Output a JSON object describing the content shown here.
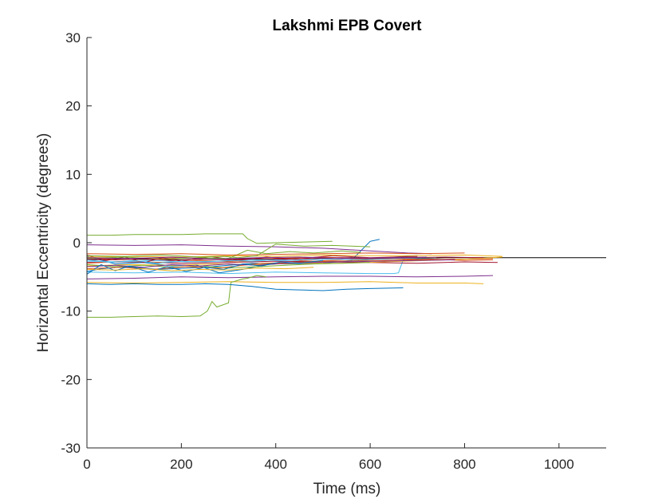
{
  "chart_data": {
    "type": "line",
    "title": "Lakshmi EPB Covert",
    "xlabel": "Time (ms)",
    "ylabel": "Horizontal Eccentricity (degrees)",
    "xlim": [
      0,
      1100
    ],
    "ylim": [
      -30,
      30
    ],
    "xticks": [
      0,
      200,
      400,
      600,
      800,
      1000
    ],
    "yticks": [
      -30,
      -20,
      -10,
      0,
      10,
      20,
      30
    ],
    "grid": false,
    "legend": "none",
    "series": [
      {
        "color": "#0072BD",
        "x": [
          0,
          30,
          80,
          150,
          250,
          350,
          420,
          500,
          560,
          600,
          620
        ],
        "y": [
          -4.2,
          -3.8,
          -3.5,
          -3.9,
          -3.6,
          -3.0,
          -3.1,
          -3.0,
          -2.6,
          0.2,
          0.5
        ]
      },
      {
        "color": "#D95319",
        "x": [
          0,
          100,
          200,
          300,
          400,
          500,
          600,
          700,
          800,
          860
        ],
        "y": [
          -2.3,
          -2.4,
          -2.2,
          -2.5,
          -2.3,
          -2.1,
          -2.4,
          -2.3,
          -2.6,
          -2.5
        ]
      },
      {
        "color": "#EDB120",
        "x": [
          0,
          100,
          200,
          300,
          400,
          500,
          600,
          700,
          800,
          840
        ],
        "y": [
          -5.8,
          -5.9,
          -5.8,
          -5.7,
          -5.8,
          -5.8,
          -5.7,
          -5.9,
          -5.9,
          -6.0
        ]
      },
      {
        "color": "#7E2F8E",
        "x": [
          0,
          100,
          200,
          300,
          400,
          500,
          600,
          700,
          800,
          860
        ],
        "y": [
          -5.3,
          -5.2,
          -5.0,
          -5.1,
          -5.0,
          -4.9,
          -4.9,
          -5.0,
          -4.9,
          -4.8
        ]
      },
      {
        "color": "#77AC30",
        "x": [
          0,
          50,
          100,
          150,
          200,
          240,
          255,
          265,
          275,
          300,
          305,
          320,
          330,
          340,
          360,
          380
        ],
        "y": [
          -10.9,
          -10.9,
          -10.8,
          -10.7,
          -10.8,
          -10.7,
          -10.0,
          -8.6,
          -9.4,
          -8.8,
          -5.8,
          -5.5,
          -5.3,
          -5.2,
          -4.8,
          -5.0
        ]
      },
      {
        "color": "#4DBEEE",
        "x": [
          0,
          100,
          200,
          300,
          400,
          500,
          600,
          650,
          660,
          670,
          680,
          700,
          720
        ],
        "y": [
          -4.3,
          -4.4,
          -4.3,
          -4.5,
          -4.3,
          -4.4,
          -4.5,
          -4.5,
          -4.4,
          -2.5,
          -2.2,
          -2.3,
          -2.1
        ]
      },
      {
        "color": "#A2142F",
        "x": [
          0,
          100,
          200,
          300,
          400,
          500,
          600,
          700,
          800,
          870
        ],
        "y": [
          -2.9,
          -2.8,
          -3.0,
          -2.9,
          -2.7,
          -2.8,
          -2.9,
          -3.0,
          -2.8,
          -2.9
        ]
      },
      {
        "color": "#77AC30",
        "x": [
          0,
          50,
          100,
          150,
          200,
          250,
          300,
          330,
          340,
          360,
          400,
          460,
          520
        ],
        "y": [
          1.1,
          1.1,
          1.2,
          1.2,
          1.2,
          1.3,
          1.3,
          1.3,
          0.6,
          -0.1,
          0.0,
          0.1,
          0.2
        ]
      },
      {
        "color": "#000000",
        "x": [
          0,
          100,
          200,
          300,
          400,
          500,
          560,
          600,
          660,
          700,
          760,
          800,
          900,
          1000,
          1100
        ],
        "y": [
          -2.5,
          -2.4,
          -2.5,
          -2.3,
          -2.4,
          -2.3,
          -2.2,
          -2.3,
          -2.2,
          -2.3,
          -2.2,
          -2.2,
          -2.2,
          -2.2,
          -2.2
        ]
      },
      {
        "color": "#0072BD",
        "x": [
          0,
          60,
          120,
          180,
          230,
          280,
          330,
          380,
          440,
          500,
          580,
          650,
          700
        ],
        "y": [
          -2.0,
          -3.1,
          -2.9,
          -3.4,
          -3.2,
          -4.4,
          -3.9,
          -3.2,
          -2.9,
          -2.8,
          -2.6,
          -2.1,
          -1.9
        ]
      },
      {
        "color": "#D95319",
        "x": [
          0,
          80,
          160,
          240,
          320,
          400,
          480,
          560,
          640,
          720,
          800,
          860
        ],
        "y": [
          -3.0,
          -2.7,
          -2.9,
          -2.6,
          -2.8,
          -2.5,
          -2.7,
          -2.4,
          -2.3,
          -2.5,
          -2.4,
          -2.3
        ]
      },
      {
        "color": "#EDB120",
        "x": [
          0,
          90,
          180,
          270,
          360,
          450,
          540,
          630,
          720,
          800,
          880
        ],
        "y": [
          -3.4,
          -3.2,
          -3.3,
          -3.1,
          -3.2,
          -3.0,
          -3.0,
          -2.8,
          -2.6,
          -2.4,
          -2.1
        ]
      },
      {
        "color": "#7E2F8E",
        "x": [
          0,
          100,
          200,
          300,
          400,
          500,
          600,
          680,
          730
        ],
        "y": [
          -0.3,
          -0.4,
          -0.3,
          -0.5,
          -0.6,
          -0.8,
          -1.2,
          -1.5,
          -1.6
        ]
      },
      {
        "color": "#77AC30",
        "x": [
          0,
          60,
          120,
          180,
          240,
          300,
          360,
          420,
          480,
          540,
          600
        ],
        "y": [
          -3.2,
          -3.5,
          -3.3,
          -3.6,
          -3.4,
          -3.7,
          -3.5,
          -3.3,
          -3.1,
          -3.0,
          -2.9
        ]
      },
      {
        "color": "#4DBEEE",
        "x": [
          0,
          70,
          140,
          210,
          280,
          350,
          420,
          500,
          580,
          660,
          740
        ],
        "y": [
          -2.7,
          -2.8,
          -2.6,
          -2.8,
          -2.7,
          -2.5,
          -2.6,
          -2.4,
          -2.5,
          -2.3,
          -2.2
        ]
      },
      {
        "color": "#A2142F",
        "x": [
          0,
          40,
          80,
          120,
          160,
          200,
          260,
          320,
          380,
          440,
          520,
          600,
          700
        ],
        "y": [
          -1.8,
          -2.6,
          -2.1,
          -2.9,
          -2.2,
          -2.7,
          -2.0,
          -2.6,
          -2.1,
          -2.4,
          -1.9,
          -2.2,
          -2.0
        ]
      },
      {
        "color": "#0072BD",
        "x": [
          0,
          50,
          100,
          150,
          200,
          250,
          300,
          350,
          400,
          450,
          500,
          550,
          600,
          670
        ],
        "y": [
          -6.0,
          -6.1,
          -6.0,
          -6.1,
          -6.1,
          -6.0,
          -6.1,
          -6.4,
          -6.8,
          -6.9,
          -7.0,
          -6.8,
          -6.7,
          -6.6
        ]
      },
      {
        "color": "#D95319",
        "x": [
          0,
          70,
          140,
          210,
          280,
          330,
          370,
          440,
          520,
          600,
          700,
          780
        ],
        "y": [
          -3.8,
          -3.6,
          -3.9,
          -3.5,
          -3.7,
          -3.3,
          -3.0,
          -2.9,
          -2.7,
          -2.6,
          -2.5,
          -2.4
        ]
      },
      {
        "color": "#EDB120",
        "x": [
          0,
          100,
          200,
          300,
          400,
          500,
          600,
          700,
          800,
          880
        ],
        "y": [
          -2.1,
          -2.0,
          -2.1,
          -1.9,
          -2.0,
          -1.8,
          -1.9,
          -1.9,
          -1.8,
          -2.0
        ]
      },
      {
        "color": "#7E2F8E",
        "x": [
          0,
          60,
          120,
          180,
          240,
          300,
          360,
          420,
          480,
          540,
          620,
          700,
          780
        ],
        "y": [
          -3.5,
          -3.3,
          -3.6,
          -3.2,
          -3.4,
          -3.1,
          -3.3,
          -3.0,
          -2.9,
          -2.8,
          -2.7,
          -2.6,
          -2.5
        ]
      },
      {
        "color": "#77AC30",
        "x": [
          0,
          80,
          160,
          240,
          300,
          340,
          380,
          430,
          480,
          540,
          580
        ],
        "y": [
          -2.3,
          -2.1,
          -2.4,
          -2.2,
          -2.3,
          -1.1,
          -1.6,
          -1.3,
          -1.5,
          -1.2,
          -1.4
        ]
      },
      {
        "color": "#4DBEEE",
        "x": [
          0,
          50,
          100,
          150,
          200,
          250,
          300,
          350,
          400,
          450
        ],
        "y": [
          -2.5,
          -2.9,
          -2.6,
          -3.0,
          -2.7,
          -2.8,
          -2.6,
          -2.7,
          -2.5,
          -2.6
        ]
      },
      {
        "color": "#A2142F",
        "x": [
          0,
          60,
          120,
          180,
          240,
          300,
          360,
          420,
          480,
          540,
          600,
          680,
          760,
          840
        ],
        "y": [
          -2.4,
          -2.5,
          -2.3,
          -2.6,
          -2.4,
          -2.5,
          -2.3,
          -2.4,
          -2.3,
          -2.2,
          -2.3,
          -2.2,
          -2.1,
          -2.2
        ]
      },
      {
        "color": "#0072BD",
        "x": [
          0,
          30,
          60,
          90,
          130,
          170,
          210,
          250,
          290,
          330,
          370,
          410,
          450,
          500
        ],
        "y": [
          -4.6,
          -3.2,
          -4.1,
          -3.4,
          -4.3,
          -3.5,
          -4.2,
          -3.6,
          -3.9,
          -3.1,
          -3.4,
          -2.8,
          -3.0,
          -2.6
        ]
      },
      {
        "color": "#D95319",
        "x": [
          0,
          100,
          200,
          300,
          400,
          500,
          600,
          700,
          800
        ],
        "y": [
          -1.6,
          -1.7,
          -1.6,
          -1.8,
          -1.7,
          -1.6,
          -1.5,
          -1.6,
          -1.5
        ]
      },
      {
        "color": "#77AC30",
        "x": [
          0,
          80,
          160,
          240,
          290,
          320,
          360,
          400,
          460,
          520,
          600
        ],
        "y": [
          -1.9,
          -2.0,
          -1.8,
          -2.1,
          -2.0,
          -2.2,
          -1.9,
          -0.2,
          -0.5,
          -0.4,
          -0.6
        ]
      },
      {
        "color": "#7E2F8E",
        "x": [
          0,
          90,
          180,
          270,
          360,
          450,
          540,
          630,
          720
        ],
        "y": [
          -2.2,
          -2.3,
          -2.1,
          -2.4,
          -2.2,
          -2.1,
          -2.3,
          -2.2,
          -2.1
        ]
      },
      {
        "color": "#EDB120",
        "x": [
          0,
          60,
          120,
          180,
          240,
          300,
          360,
          420,
          480
        ],
        "y": [
          -3.9,
          -4.0,
          -3.8,
          -4.1,
          -3.9,
          -4.0,
          -3.7,
          -3.8,
          -3.6
        ]
      }
    ]
  }
}
